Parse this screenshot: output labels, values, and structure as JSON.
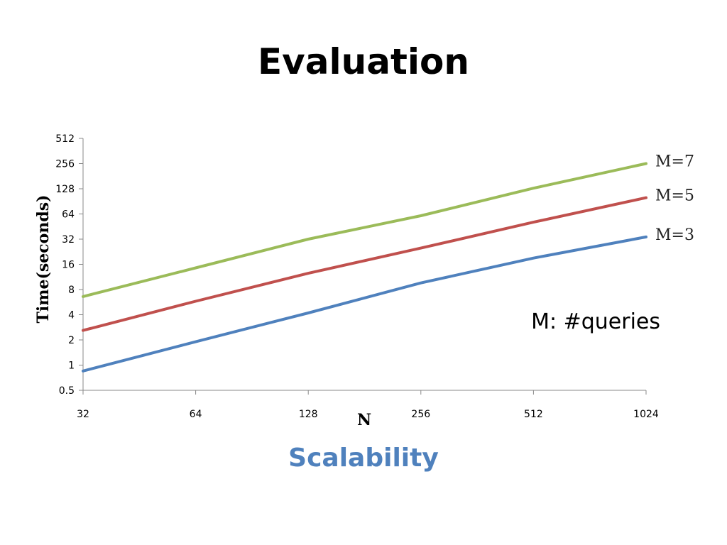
{
  "slide": {
    "title": "Evaluation",
    "caption": "Scalability"
  },
  "colors": {
    "caption": "#4f81bd",
    "axis": "#888888"
  },
  "chart_data": {
    "type": "line",
    "x_scale": "log2",
    "y_scale": "log2",
    "x": [
      32,
      64,
      128,
      256,
      512,
      1024
    ],
    "x_tick_labels": [
      "32",
      "64",
      "128",
      "256",
      "512",
      "1024"
    ],
    "y_ticks": [
      0.5,
      1,
      2,
      4,
      8,
      16,
      32,
      64,
      128,
      256,
      512
    ],
    "y_tick_labels": [
      "0.5",
      "1",
      "2",
      "4",
      "8",
      "16",
      "32",
      "64",
      "128",
      "256",
      "512"
    ],
    "xlim": [
      32,
      1024
    ],
    "ylim": [
      0.5,
      512
    ],
    "xlabel": "N",
    "ylabel": "Time(seconds)",
    "annotation": "M: #queries",
    "grid": false,
    "series": [
      {
        "name": "M=7",
        "color": "#9bbb59",
        "values": [
          6.6,
          14.5,
          32,
          61,
          130,
          256
        ]
      },
      {
        "name": "M=5",
        "color": "#c0504d",
        "values": [
          2.6,
          5.8,
          12.5,
          25,
          51,
          100
        ]
      },
      {
        "name": "M=3",
        "color": "#4f81bd",
        "values": [
          0.85,
          1.9,
          4.2,
          9.6,
          19,
          34
        ]
      }
    ]
  }
}
